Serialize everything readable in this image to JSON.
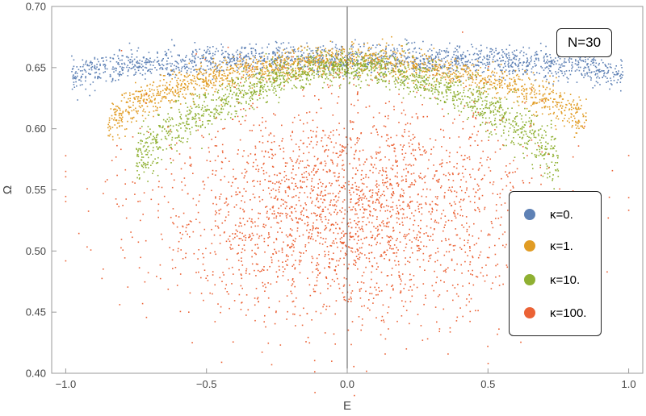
{
  "chart_data": {
    "type": "scatter",
    "title": "",
    "xlabel": "E",
    "ylabel": "Ω",
    "xlim": [
      -1.05,
      1.05
    ],
    "ylim": [
      0.4,
      0.7
    ],
    "xticks": [
      "-1.0",
      "-0.5",
      "0.0",
      "0.5",
      "1.0"
    ],
    "yticks": [
      "0.40",
      "0.45",
      "0.50",
      "0.55",
      "0.60",
      "0.65",
      "0.70"
    ],
    "grid": false,
    "annotation": "N=30",
    "legend_position": "right",
    "series": [
      {
        "name": "κ=0.",
        "color": "#5E81B5",
        "x": [
          -0.98,
          -0.9,
          -0.8,
          -0.7,
          -0.6,
          -0.5,
          -0.4,
          -0.3,
          -0.2,
          -0.1,
          0.0,
          0.1,
          0.2,
          0.3,
          0.4,
          0.5,
          0.6,
          0.7,
          0.8,
          0.9,
          0.98
        ],
        "y": [
          0.643,
          0.648,
          0.651,
          0.653,
          0.654,
          0.655,
          0.656,
          0.657,
          0.657,
          0.657,
          0.658,
          0.657,
          0.657,
          0.657,
          0.656,
          0.655,
          0.654,
          0.653,
          0.651,
          0.648,
          0.643
        ],
        "spread": [
          0.006,
          0.006,
          0.006,
          0.006,
          0.006,
          0.006,
          0.006,
          0.006,
          0.006,
          0.006,
          0.006,
          0.006,
          0.006,
          0.006,
          0.006,
          0.006,
          0.006,
          0.006,
          0.006,
          0.006,
          0.006
        ]
      },
      {
        "name": "κ=1.",
        "color": "#E19C24",
        "x": [
          -0.85,
          -0.75,
          -0.65,
          -0.55,
          -0.45,
          -0.35,
          -0.25,
          -0.15,
          -0.05,
          0.05,
          0.15,
          0.25,
          0.35,
          0.45,
          0.55,
          0.65,
          0.75,
          0.85
        ],
        "y": [
          0.605,
          0.62,
          0.63,
          0.637,
          0.643,
          0.647,
          0.651,
          0.654,
          0.656,
          0.656,
          0.654,
          0.651,
          0.647,
          0.643,
          0.637,
          0.63,
          0.62,
          0.605
        ],
        "spread": [
          0.009,
          0.008,
          0.008,
          0.007,
          0.007,
          0.006,
          0.006,
          0.006,
          0.006,
          0.006,
          0.006,
          0.006,
          0.006,
          0.007,
          0.007,
          0.008,
          0.008,
          0.009
        ]
      },
      {
        "name": "κ=10.",
        "color": "#8FB032",
        "x": [
          -0.75,
          -0.65,
          -0.55,
          -0.45,
          -0.35,
          -0.25,
          -0.15,
          -0.05,
          0.05,
          0.15,
          0.25,
          0.35,
          0.45,
          0.55,
          0.65,
          0.75
        ],
        "y": [
          0.575,
          0.595,
          0.61,
          0.622,
          0.632,
          0.64,
          0.646,
          0.65,
          0.65,
          0.646,
          0.64,
          0.632,
          0.622,
          0.61,
          0.595,
          0.575
        ],
        "spread": [
          0.012,
          0.011,
          0.01,
          0.009,
          0.008,
          0.007,
          0.007,
          0.006,
          0.006,
          0.007,
          0.007,
          0.008,
          0.009,
          0.01,
          0.011,
          0.012
        ]
      },
      {
        "name": "κ=100.",
        "color": "#EB6235",
        "x": [
          -0.95,
          -0.8,
          -0.65,
          -0.5,
          -0.35,
          -0.2,
          -0.05,
          0.05,
          0.2,
          0.35,
          0.5,
          0.65,
          0.8,
          0.95
        ],
        "y": [
          0.53,
          0.53,
          0.53,
          0.531,
          0.532,
          0.533,
          0.534,
          0.534,
          0.533,
          0.532,
          0.531,
          0.53,
          0.53,
          0.53
        ],
        "spread": [
          0.04,
          0.042,
          0.043,
          0.044,
          0.045,
          0.045,
          0.045,
          0.045,
          0.045,
          0.045,
          0.044,
          0.043,
          0.042,
          0.04
        ]
      }
    ]
  }
}
